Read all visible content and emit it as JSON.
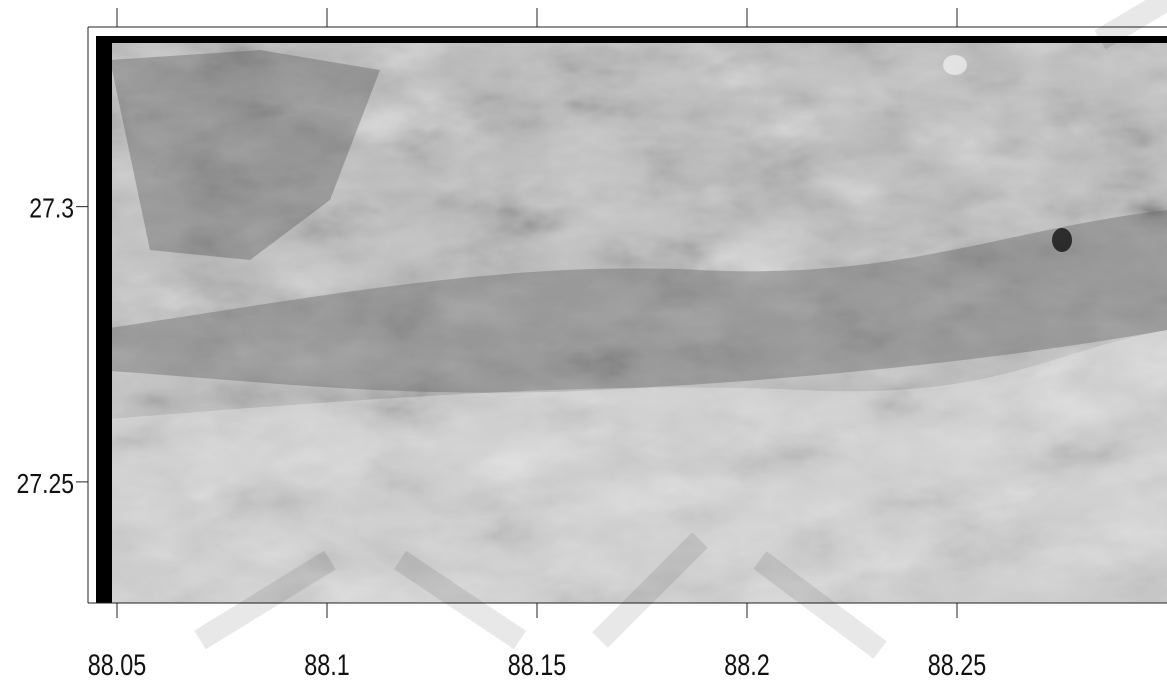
{
  "map": {
    "type": "hillshade-relief",
    "colormap": "grayscale",
    "grid": false,
    "x_axis": {
      "unit": "degrees longitude",
      "range": [
        88.045,
        88.3
      ],
      "ticks": [
        {
          "value": 88.05,
          "label": "88.05"
        },
        {
          "value": 88.1,
          "label": "88.1"
        },
        {
          "value": 88.15,
          "label": "88.15"
        },
        {
          "value": 88.2,
          "label": "88.2"
        },
        {
          "value": 88.25,
          "label": "88.25"
        }
      ]
    },
    "y_axis": {
      "unit": "degrees latitude",
      "range": [
        27.228,
        27.331
      ],
      "ticks": [
        {
          "value": 27.3,
          "label": "27.3"
        },
        {
          "value": 27.25,
          "label": "27.25"
        }
      ]
    },
    "top_tick_values": [
      88.05,
      88.1,
      88.15,
      88.2,
      88.25
    ]
  }
}
